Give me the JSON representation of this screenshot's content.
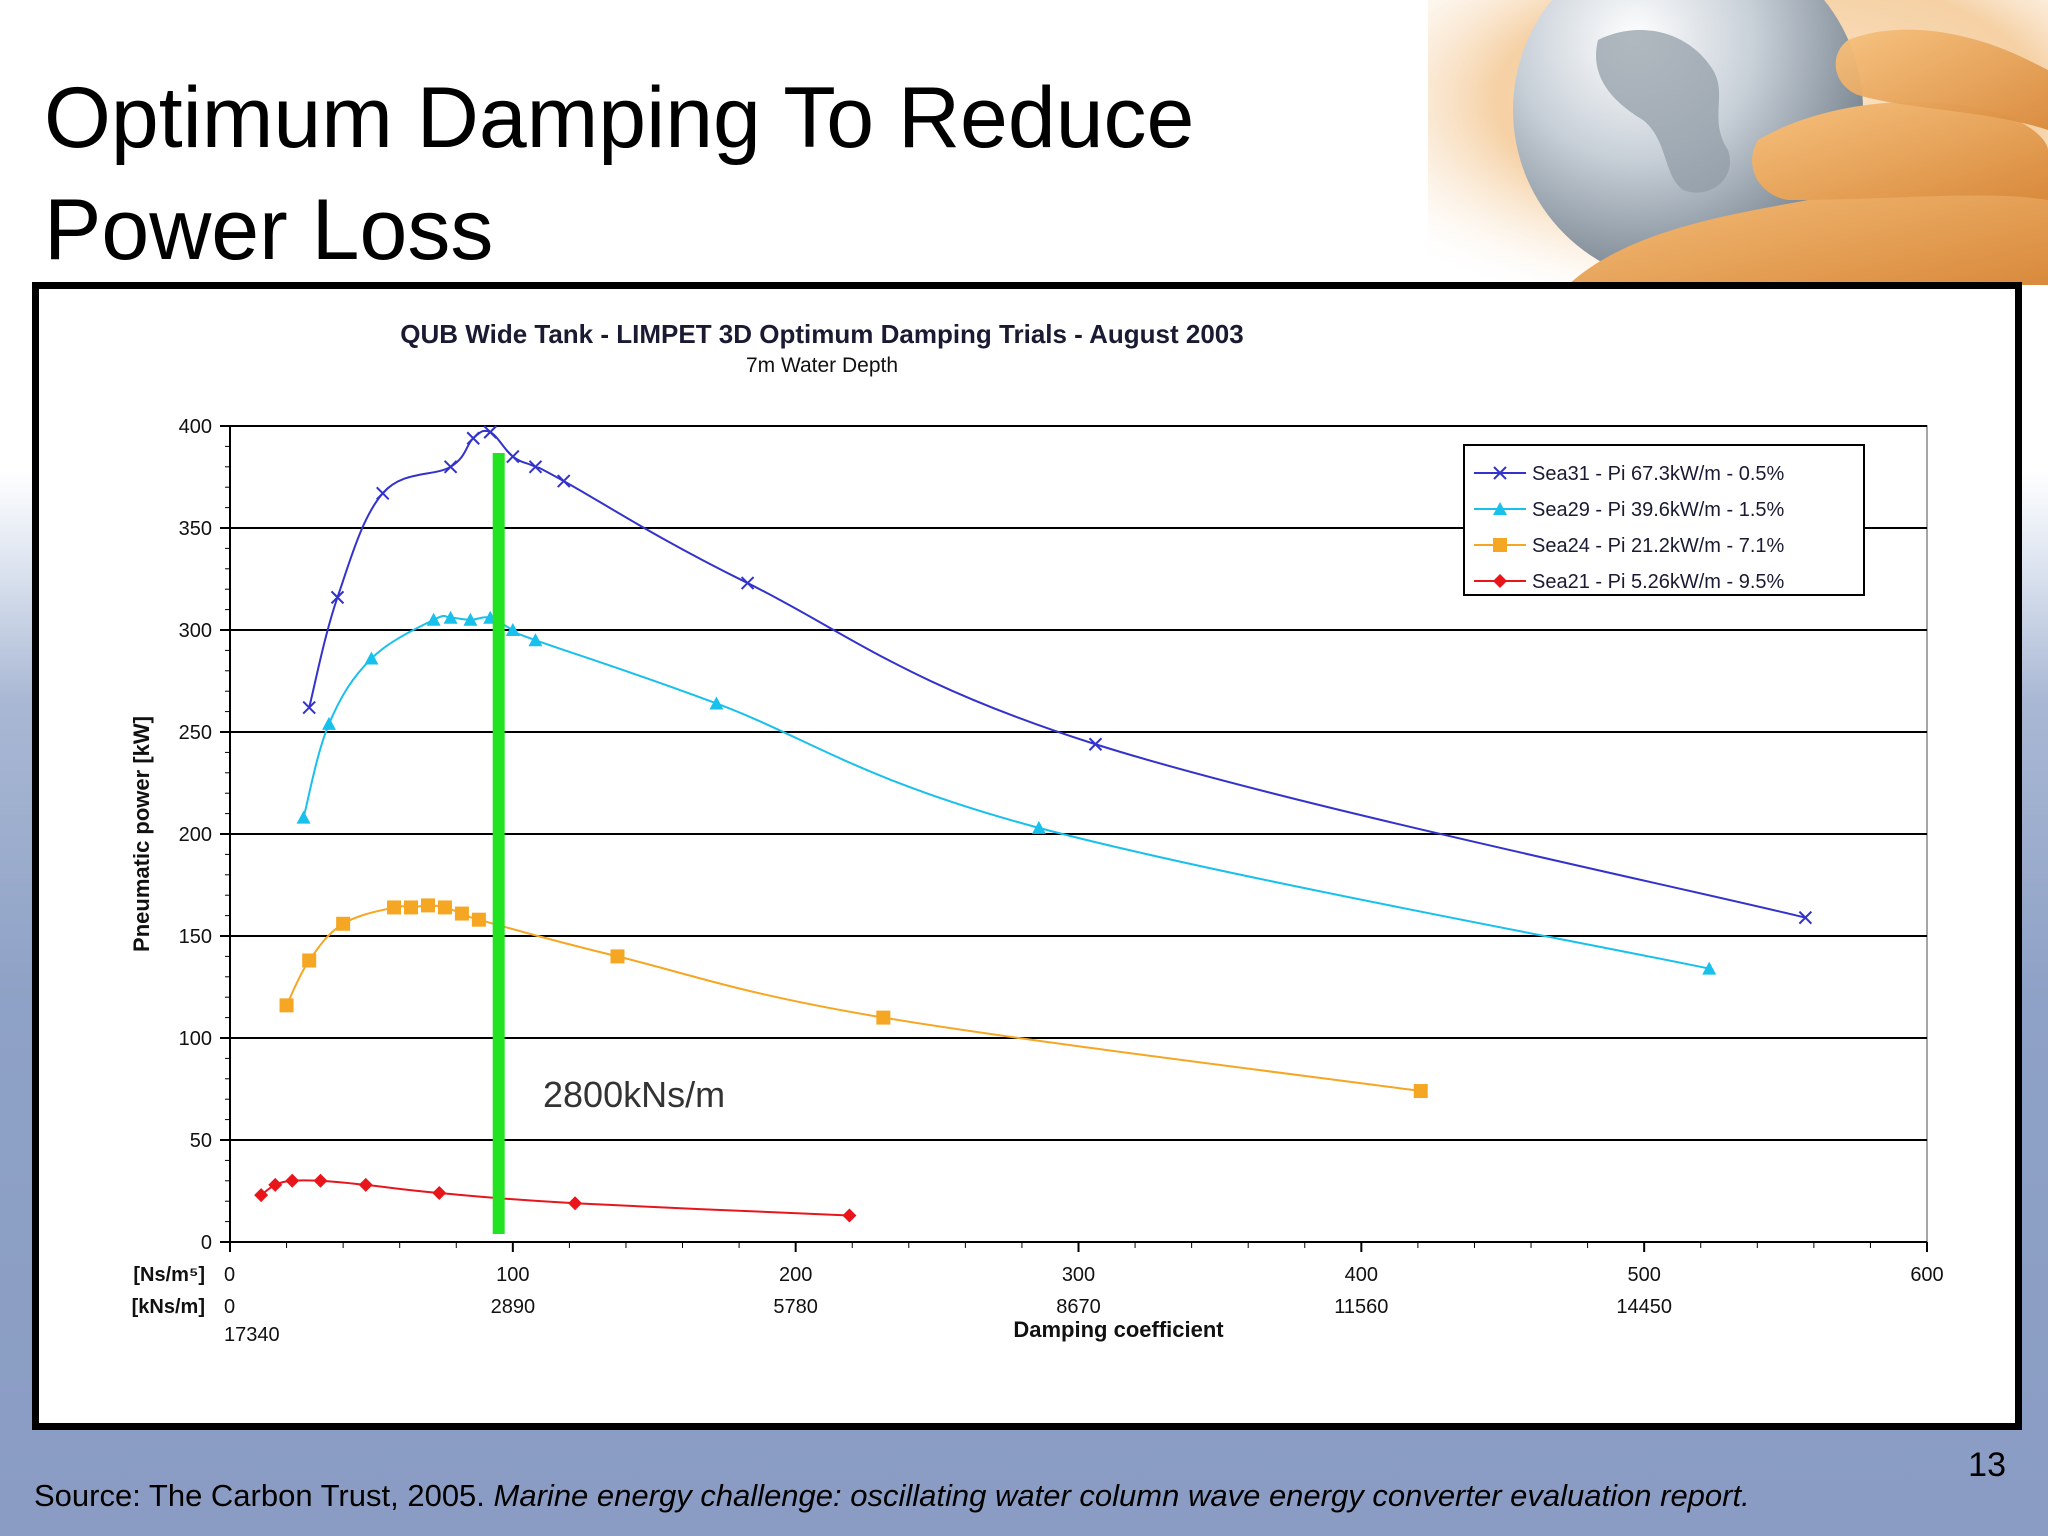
{
  "slide": {
    "title_line1": "Optimum Damping To Reduce",
    "title_line2": "Power Loss",
    "source_plain": "Source: The Carbon Trust, 2005.",
    "source_italic": "Marine energy challenge: oscillating water column wave energy converter evaluation report.",
    "page_number": "13"
  },
  "chart_data": {
    "type": "line",
    "title": "QUB Wide Tank - LIMPET 3D Optimum Damping Trials - August 2003",
    "subtitle": "7m Water Depth",
    "ylabel": "Pneumatic power [kW]",
    "xlabel": "Damping coefficient",
    "ylim": [
      0,
      400
    ],
    "yticks": [
      0,
      50,
      100,
      150,
      200,
      250,
      300,
      350,
      400
    ],
    "xlim": [
      0,
      600
    ],
    "xticks": [
      0,
      100,
      200,
      300,
      400,
      500,
      600
    ],
    "x_axis_rows": [
      {
        "label": "[Ns/m⁵]",
        "ticks": [
          "0",
          "100",
          "200",
          "300",
          "400",
          "500",
          "600"
        ]
      },
      {
        "label": "[kNs/m]",
        "ticks": [
          "0",
          "2890",
          "5780",
          "8670",
          "11560",
          "14450",
          ""
        ]
      }
    ],
    "x_extra_label": "17340",
    "grid": "horizontal",
    "legend_position": "top-right",
    "annotation": {
      "text": "2800kNs/m",
      "x": 95,
      "color": "#22e322"
    },
    "series": [
      {
        "name": "Sea31 - Pi 67.3kW/m - 0.5%",
        "color": "#3333cc",
        "marker": "x",
        "points": [
          [
            28,
            262
          ],
          [
            38,
            316
          ],
          [
            54,
            367
          ],
          [
            78,
            380
          ],
          [
            86,
            394
          ],
          [
            92,
            397
          ],
          [
            100,
            385
          ],
          [
            108,
            380
          ],
          [
            118,
            373
          ],
          [
            183,
            323
          ],
          [
            306,
            244
          ],
          [
            557,
            159
          ]
        ]
      },
      {
        "name": "Sea29 - Pi 39.6kW/m - 1.5%",
        "color": "#18c0ec",
        "marker": "triangle",
        "points": [
          [
            26,
            208
          ],
          [
            35,
            254
          ],
          [
            50,
            286
          ],
          [
            72,
            305
          ],
          [
            78,
            306
          ],
          [
            85,
            305
          ],
          [
            92,
            306
          ],
          [
            100,
            300
          ],
          [
            108,
            295
          ],
          [
            172,
            264
          ],
          [
            286,
            203
          ],
          [
            523,
            134
          ]
        ]
      },
      {
        "name": "Sea24 - Pi 21.2kW/m - 7.1%",
        "color": "#f5a623",
        "marker": "square",
        "points": [
          [
            20,
            116
          ],
          [
            28,
            138
          ],
          [
            40,
            156
          ],
          [
            58,
            164
          ],
          [
            64,
            164
          ],
          [
            70,
            165
          ],
          [
            76,
            164
          ],
          [
            82,
            161
          ],
          [
            88,
            158
          ],
          [
            137,
            140
          ],
          [
            231,
            110
          ],
          [
            421,
            74
          ]
        ]
      },
      {
        "name": "Sea21 - Pi 5.26kW/m - 9.5%",
        "color": "#e8151b",
        "marker": "diamond",
        "points": [
          [
            11,
            23
          ],
          [
            16,
            28
          ],
          [
            22,
            30
          ],
          [
            32,
            30
          ],
          [
            48,
            28
          ],
          [
            74,
            24
          ],
          [
            122,
            19
          ],
          [
            219,
            13
          ]
        ]
      }
    ]
  }
}
